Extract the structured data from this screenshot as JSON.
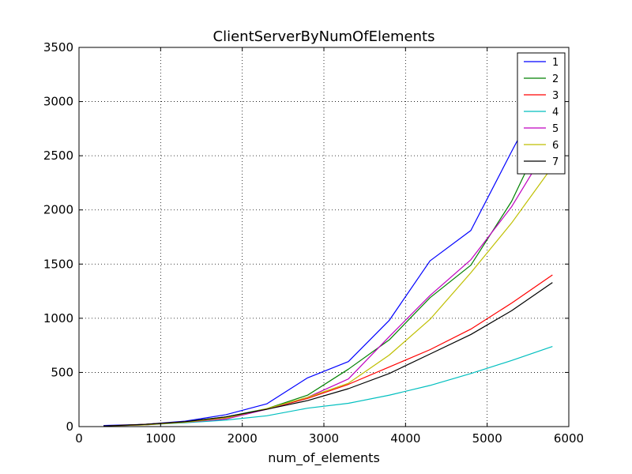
{
  "chart_data": {
    "type": "line",
    "title": "ClientServerByNumOfElements",
    "xlabel": "num_of_elements",
    "ylabel": "",
    "xlim": [
      0,
      6000
    ],
    "ylim": [
      0,
      3500
    ],
    "xticks": [
      0,
      1000,
      2000,
      3000,
      4000,
      5000,
      6000
    ],
    "yticks": [
      0,
      500,
      1000,
      1500,
      2000,
      2500,
      3000,
      3500
    ],
    "grid": true,
    "legend_position": "top-right",
    "x": [
      300,
      800,
      1300,
      1800,
      2300,
      2800,
      3300,
      3800,
      4300,
      4800,
      5300,
      5800
    ],
    "series": [
      {
        "name": "1",
        "color": "#0000ff",
        "values": [
          10,
          20,
          50,
          110,
          210,
          450,
          600,
          980,
          1530,
          1810,
          2540,
          3250
        ]
      },
      {
        "name": "2",
        "color": "#008000",
        "values": [
          5,
          20,
          45,
          90,
          165,
          290,
          530,
          800,
          1190,
          1490,
          2080,
          2870
        ]
      },
      {
        "name": "3",
        "color": "#ff0000",
        "values": [
          5,
          20,
          45,
          80,
          160,
          260,
          390,
          550,
          710,
          900,
          1140,
          1400
        ]
      },
      {
        "name": "4",
        "color": "#00bfbf",
        "values": [
          5,
          15,
          35,
          60,
          100,
          170,
          215,
          290,
          380,
          490,
          610,
          740
        ]
      },
      {
        "name": "5",
        "color": "#bf00bf",
        "values": [
          5,
          15,
          40,
          70,
          160,
          270,
          440,
          830,
          1210,
          1540,
          2030,
          2650
        ]
      },
      {
        "name": "6",
        "color": "#bfbf00",
        "values": [
          5,
          15,
          40,
          80,
          165,
          270,
          400,
          660,
          990,
          1420,
          1880,
          2400
        ]
      },
      {
        "name": "7",
        "color": "#000000",
        "values": [
          5,
          20,
          45,
          90,
          160,
          240,
          350,
          490,
          670,
          850,
          1070,
          1330
        ]
      }
    ]
  }
}
